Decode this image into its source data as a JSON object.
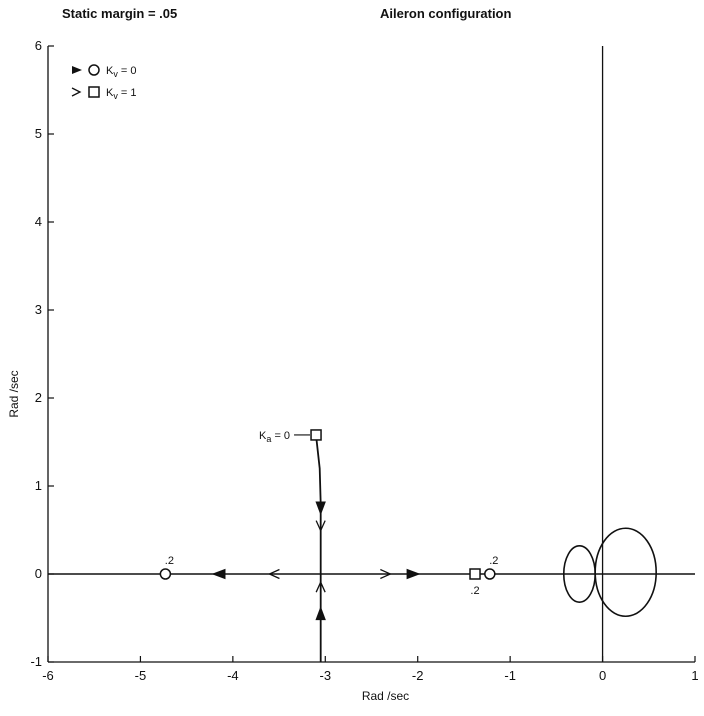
{
  "header": {
    "left": "Static margin = .05",
    "right": "Aileron configuration"
  },
  "chart_data": {
    "type": "scatter",
    "title": "Aileron configuration",
    "subtitle": "Static margin = .05",
    "xlabel": "Rad /sec",
    "ylabel": "Rad /sec",
    "xlim": [
      -6,
      1
    ],
    "ylim": [
      -1,
      6
    ],
    "xticks": [
      "-6",
      "-5",
      "-4",
      "-3",
      "-2",
      "-1",
      "0",
      "1"
    ],
    "yticks": [
      "-1",
      "0",
      "1",
      "2",
      "3",
      "4",
      "5",
      "6"
    ],
    "grid": false,
    "legend": [
      {
        "marker": "circle",
        "arrow": "filled",
        "label": "K_v = 0"
      },
      {
        "marker": "square",
        "arrow": "open",
        "label": "K_v = 1"
      }
    ],
    "legend_placement": "top-left",
    "series": [
      {
        "name": "K_v = 0 branch",
        "marker": "circle",
        "points": [
          {
            "x": -4.73,
            "y": 0
          },
          {
            "x": -1.22,
            "y": 0
          }
        ]
      },
      {
        "name": "K_v = 1 branch",
        "marker": "square",
        "points": [
          {
            "x": -3.1,
            "y": 1.58
          },
          {
            "x": -1.38,
            "y": 0
          }
        ]
      }
    ],
    "locus_branches": [
      {
        "name": "complex pole to real axis",
        "path": [
          [
            -3.1,
            1.58
          ],
          [
            -3.06,
            1.2
          ],
          [
            -3.05,
            0.8
          ],
          [
            -3.05,
            0.3
          ],
          [
            -3.05,
            0
          ]
        ]
      },
      {
        "name": "lower branch to real axis",
        "path": [
          [
            -3.05,
            -1
          ],
          [
            -3.05,
            -0.5
          ],
          [
            -3.05,
            0
          ]
        ]
      },
      {
        "name": "real axis",
        "path": [
          [
            -6,
            0
          ],
          [
            1,
            0
          ]
        ]
      }
    ],
    "loops": [
      {
        "name": "left loop",
        "cx": -0.25,
        "cy": 0,
        "rx": 0.17,
        "ry": 0.32
      },
      {
        "name": "right loop",
        "cx": 0.25,
        "cy": 0.02,
        "rx": 0.33,
        "ry": 0.5
      }
    ],
    "annotations": [
      {
        "text": "K_a = 0",
        "x": -3.1,
        "y": 1.58
      },
      {
        "text": ".2",
        "x": -4.73,
        "y": 0,
        "pos": "above"
      },
      {
        "text": ".2",
        "x": -1.22,
        "y": 0,
        "pos": "above"
      },
      {
        "text": ".2",
        "x": -1.38,
        "y": 0,
        "pos": "below"
      }
    ],
    "arrows": [
      {
        "x": -3.05,
        "y": 0.75,
        "dir": "down",
        "style": "filled"
      },
      {
        "x": -3.05,
        "y": 0.55,
        "dir": "down",
        "style": "open"
      },
      {
        "x": -3.05,
        "y": -0.45,
        "dir": "up",
        "style": "filled"
      },
      {
        "x": -3.05,
        "y": -0.15,
        "dir": "up",
        "style": "open"
      },
      {
        "x": -4.15,
        "y": 0,
        "dir": "left",
        "style": "filled"
      },
      {
        "x": -3.55,
        "y": 0,
        "dir": "left",
        "style": "open"
      },
      {
        "x": -2.05,
        "y": 0,
        "dir": "right",
        "style": "filled"
      },
      {
        "x": -2.35,
        "y": 0,
        "dir": "right",
        "style": "open"
      }
    ],
    "colors": {
      "ink": "#111111",
      "background": "#ffffff"
    }
  }
}
